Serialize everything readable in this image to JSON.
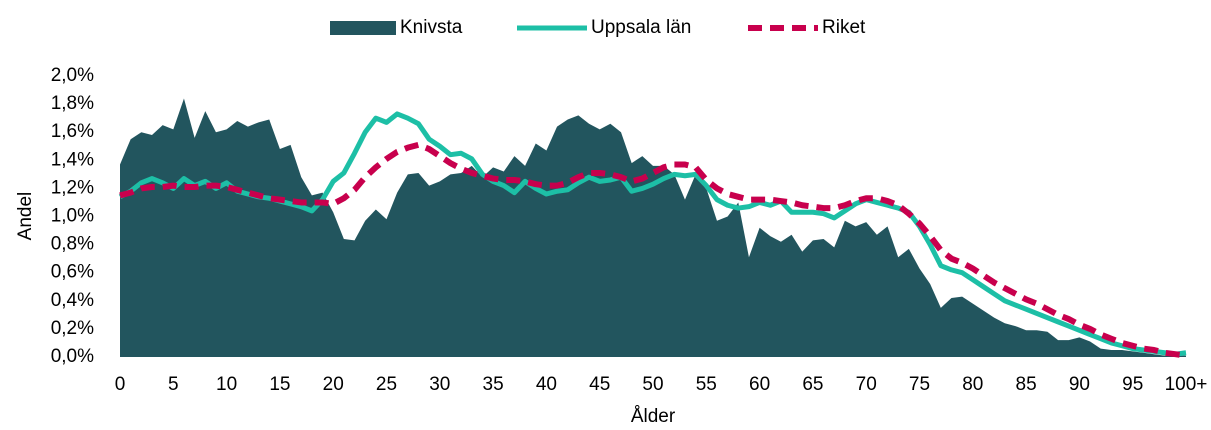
{
  "chart_data": {
    "type": "line",
    "xlabel": "Ålder",
    "ylabel": "Andel",
    "categories": [
      "0",
      null,
      null,
      null,
      null,
      "5",
      null,
      null,
      null,
      null,
      "10",
      null,
      null,
      null,
      null,
      "15",
      null,
      null,
      null,
      null,
      "20",
      null,
      null,
      null,
      null,
      "25",
      null,
      null,
      null,
      null,
      "30",
      null,
      null,
      null,
      null,
      "35",
      null,
      null,
      null,
      null,
      "40",
      null,
      null,
      null,
      null,
      "45",
      null,
      null,
      null,
      null,
      "50",
      null,
      null,
      null,
      null,
      "55",
      null,
      null,
      null,
      null,
      "60",
      null,
      null,
      null,
      null,
      "65",
      null,
      null,
      null,
      null,
      "70",
      null,
      null,
      null,
      null,
      "75",
      null,
      null,
      null,
      null,
      "80",
      null,
      null,
      null,
      null,
      "85",
      null,
      null,
      null,
      null,
      "90",
      null,
      null,
      null,
      null,
      "95",
      null,
      null,
      null,
      null,
      "100+"
    ],
    "series": [
      {
        "name": "Knivsta",
        "style": "area",
        "color": "#22555e",
        "values": [
          1.37,
          1.55,
          1.6,
          1.58,
          1.65,
          1.62,
          1.84,
          1.56,
          1.75,
          1.6,
          1.62,
          1.68,
          1.64,
          1.67,
          1.69,
          1.48,
          1.51,
          1.28,
          1.15,
          1.17,
          1.03,
          0.84,
          0.83,
          0.97,
          1.05,
          0.98,
          1.17,
          1.3,
          1.31,
          1.22,
          1.25,
          1.3,
          1.31,
          1.36,
          1.28,
          1.35,
          1.32,
          1.43,
          1.36,
          1.52,
          1.47,
          1.64,
          1.69,
          1.72,
          1.66,
          1.62,
          1.66,
          1.6,
          1.38,
          1.43,
          1.36,
          1.36,
          1.3,
          1.12,
          1.3,
          1.2,
          0.97,
          1.0,
          1.1,
          0.71,
          0.92,
          0.86,
          0.82,
          0.87,
          0.75,
          0.83,
          0.84,
          0.78,
          0.97,
          0.93,
          0.96,
          0.87,
          0.93,
          0.71,
          0.77,
          0.63,
          0.52,
          0.35,
          0.42,
          0.43,
          0.38,
          0.33,
          0.28,
          0.24,
          0.22,
          0.19,
          0.19,
          0.18,
          0.12,
          0.12,
          0.14,
          0.11,
          0.06,
          0.05,
          0.05,
          0.04,
          0.03,
          0.02,
          0.01,
          0.01,
          0.01
        ]
      },
      {
        "name": "Uppsala län",
        "style": "solid",
        "color": "#1dbfa6",
        "values": [
          1.14,
          1.18,
          1.24,
          1.27,
          1.24,
          1.2,
          1.27,
          1.22,
          1.25,
          1.2,
          1.24,
          1.18,
          1.16,
          1.14,
          1.13,
          1.11,
          1.09,
          1.07,
          1.04,
          1.12,
          1.25,
          1.31,
          1.45,
          1.6,
          1.7,
          1.67,
          1.73,
          1.7,
          1.66,
          1.55,
          1.5,
          1.44,
          1.45,
          1.41,
          1.3,
          1.25,
          1.22,
          1.17,
          1.25,
          1.2,
          1.16,
          1.18,
          1.19,
          1.24,
          1.28,
          1.25,
          1.26,
          1.28,
          1.18,
          1.2,
          1.23,
          1.27,
          1.3,
          1.29,
          1.3,
          1.22,
          1.12,
          1.08,
          1.06,
          1.07,
          1.1,
          1.08,
          1.11,
          1.03,
          1.03,
          1.03,
          1.02,
          0.99,
          1.04,
          1.09,
          1.12,
          1.1,
          1.08,
          1.06,
          1.03,
          0.93,
          0.8,
          0.65,
          0.62,
          0.6,
          0.55,
          0.5,
          0.45,
          0.4,
          0.37,
          0.34,
          0.31,
          0.28,
          0.25,
          0.22,
          0.19,
          0.16,
          0.13,
          0.1,
          0.08,
          0.06,
          0.05,
          0.04,
          0.03,
          0.02,
          0.03
        ]
      },
      {
        "name": "Riket",
        "style": "dashed",
        "color": "#c8004d",
        "values": [
          1.15,
          1.17,
          1.2,
          1.21,
          1.21,
          1.22,
          1.21,
          1.21,
          1.22,
          1.22,
          1.21,
          1.19,
          1.17,
          1.15,
          1.13,
          1.12,
          1.11,
          1.1,
          1.1,
          1.1,
          1.09,
          1.13,
          1.19,
          1.28,
          1.35,
          1.41,
          1.46,
          1.49,
          1.51,
          1.48,
          1.43,
          1.38,
          1.34,
          1.31,
          1.29,
          1.27,
          1.26,
          1.26,
          1.25,
          1.23,
          1.22,
          1.22,
          1.24,
          1.28,
          1.31,
          1.31,
          1.3,
          1.28,
          1.25,
          1.27,
          1.31,
          1.35,
          1.37,
          1.37,
          1.35,
          1.26,
          1.2,
          1.16,
          1.14,
          1.12,
          1.12,
          1.12,
          1.11,
          1.1,
          1.08,
          1.07,
          1.06,
          1.06,
          1.08,
          1.11,
          1.13,
          1.13,
          1.11,
          1.08,
          1.02,
          0.95,
          0.86,
          0.76,
          0.7,
          0.67,
          0.63,
          0.58,
          0.53,
          0.49,
          0.45,
          0.41,
          0.38,
          0.34,
          0.3,
          0.27,
          0.23,
          0.2,
          0.16,
          0.13,
          0.1,
          0.08,
          0.06,
          0.05,
          0.03,
          0.02,
          0.01
        ]
      }
    ],
    "ylim": [
      0,
      2.0
    ],
    "yticks": [
      {
        "value": 0,
        "label": "0,0%"
      },
      {
        "value": 0.2,
        "label": "0,2%"
      },
      {
        "value": 0.4,
        "label": "0,4%"
      },
      {
        "value": 0.6,
        "label": "0,6%"
      },
      {
        "value": 0.8,
        "label": "0,8%"
      },
      {
        "value": 1.0,
        "label": "1,0%"
      },
      {
        "value": 1.2,
        "label": "1,2%"
      },
      {
        "value": 1.4,
        "label": "1,4%"
      },
      {
        "value": 1.6,
        "label": "1,6%"
      },
      {
        "value": 1.8,
        "label": "1,8%"
      },
      {
        "value": 2.0,
        "label": "2,0%"
      }
    ],
    "legend": "top"
  }
}
